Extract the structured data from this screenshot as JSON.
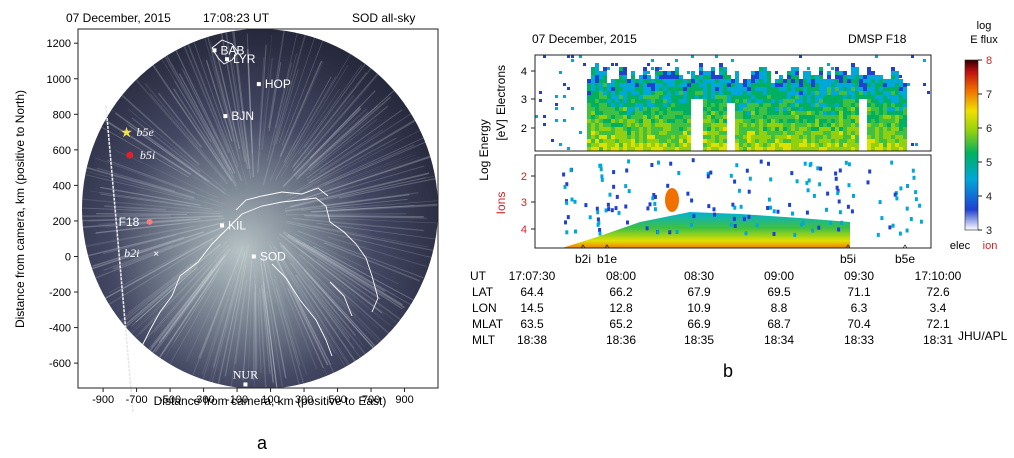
{
  "panel_a": {
    "date": "07 December, 2015",
    "time": "17:08:23 UT",
    "site": "SOD all-sky",
    "ylabel": "Distance from camera, km (positive to North)",
    "xlabel": "Distance from camera, km (positive to East)",
    "letter": "a",
    "x_ticks": [
      "-900",
      "-700",
      "-500",
      "-300",
      "-100",
      "100",
      "300",
      "500",
      "700",
      "900"
    ],
    "x_tick_values": [
      -900,
      -700,
      -500,
      -300,
      -100,
      100,
      300,
      500,
      700,
      900
    ],
    "y_ticks": [
      "1200",
      "1000",
      "800",
      "600",
      "400",
      "200",
      "0",
      "-200",
      "-400",
      "-600"
    ],
    "y_tick_values": [
      1200,
      1000,
      800,
      600,
      400,
      200,
      0,
      -200,
      -400,
      -600
    ],
    "xlim": [
      -1050,
      1100
    ],
    "ylim": [
      -740,
      1280
    ],
    "stations": [
      {
        "name": "BAB",
        "x": -235,
        "y": 1160
      },
      {
        "name": "LYR",
        "x": -160,
        "y": 1110
      },
      {
        "name": "HOP",
        "x": 30,
        "y": 970
      },
      {
        "name": "BJN",
        "x": -170,
        "y": 790
      },
      {
        "name": "KIL",
        "x": -190,
        "y": 175
      },
      {
        "name": "SOD",
        "x": 0,
        "y": 0
      },
      {
        "name": "NUR",
        "x": -50,
        "y": -720
      }
    ],
    "track_markers": [
      {
        "name": "b5e",
        "x": -760,
        "y": 700,
        "color": "#f4e04d"
      },
      {
        "name": "b5i",
        "x": -740,
        "y": 570,
        "color": "#e0202a"
      },
      {
        "name": "F18",
        "x": -640,
        "y": 195,
        "color": "#f08080"
      },
      {
        "name": "b2i",
        "x": -595,
        "y": 20,
        "color": "#ffffff"
      }
    ]
  },
  "panel_b": {
    "date": "07 December, 2015",
    "satellite": "DMSP F18",
    "ylabel_energy": "Log Energy",
    "ylabel_unit": "[eV]",
    "ylabel_electrons": "Electrons",
    "ylabel_ions": "Ions",
    "ele_ticks": [
      "4",
      "3",
      "2"
    ],
    "ion_ticks": [
      "2",
      "3",
      "4"
    ],
    "colorbar_title": "log",
    "colorbar_title2": "E flux",
    "colorbar_ticks": [
      "8",
      "7",
      "6",
      "5",
      "4",
      "3"
    ],
    "colorbar_foot_elec": "elec",
    "colorbar_foot_ion": "ion",
    "markers": [
      "b2i",
      "b1e",
      "b5i",
      "b5e"
    ],
    "letter": "b",
    "table": {
      "rows": [
        {
          "label": "UT",
          "values": [
            "17:07:30",
            "08:00",
            "08:30",
            "09:00",
            "09:30",
            "17:10:00"
          ]
        },
        {
          "label": "LAT",
          "values": [
            "64.4",
            "66.2",
            "67.9",
            "69.5",
            "71.1",
            "72.6"
          ]
        },
        {
          "label": "LON",
          "values": [
            "14.5",
            "12.8",
            "10.9",
            "8.8",
            "6.3",
            "3.4"
          ]
        },
        {
          "label": "MLAT",
          "values": [
            "63.5",
            "65.2",
            "66.9",
            "68.7",
            "70.4",
            "72.1"
          ]
        },
        {
          "label": "MLT",
          "values": [
            "18:38",
            "18:36",
            "18:35",
            "18:34",
            "18:33",
            "18:31"
          ]
        }
      ],
      "credit": "JHU/APL"
    }
  },
  "colors": {
    "sky_bg": "#2b2e43",
    "track": "#e8e8e8",
    "coast": "#ffffff",
    "ion_label": "#d62020"
  }
}
